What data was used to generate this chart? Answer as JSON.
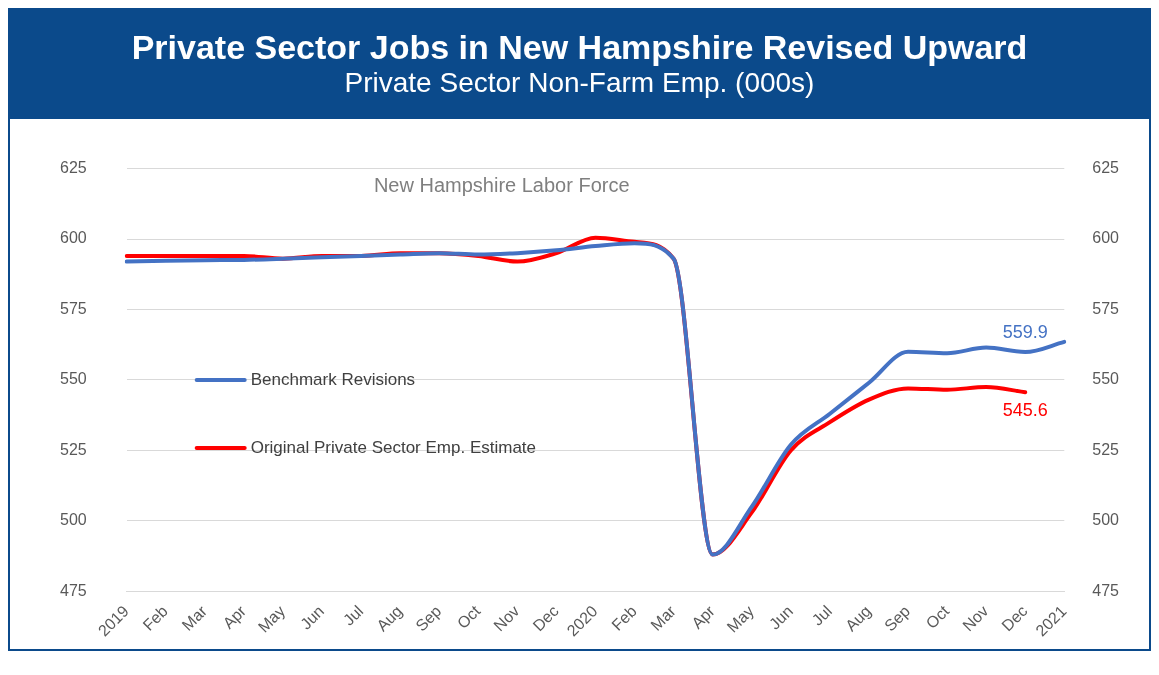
{
  "chart_data": {
    "type": "line",
    "title": "Private Sector Jobs in New Hampshire Revised Upward",
    "subtitle": "Private Sector Non-Farm Emp. (000s)",
    "annotations": [
      "New Hampshire Labor Force"
    ],
    "categories": [
      "2019",
      "Feb",
      "Mar",
      "Apr",
      "May",
      "Jun",
      "Jul",
      "Aug",
      "Sep",
      "Oct",
      "Nov",
      "Dec",
      "2020",
      "Feb",
      "Mar",
      "Apr",
      "May",
      "Jun",
      "Jul",
      "Aug",
      "Sep",
      "Oct",
      "Nov",
      "Dec",
      "2021"
    ],
    "series": [
      {
        "name": "Benchmark Revisions",
        "color": "#4472c4",
        "values": [
          592,
          592.3,
          592.5,
          592.6,
          593,
          593.5,
          594,
          594.5,
          595,
          594.5,
          595,
          596,
          597.5,
          598.5,
          593,
          488,
          505,
          527,
          538,
          549,
          560,
          559.5,
          561.5,
          559.9,
          563.5
        ],
        "value_labels": [
          null,
          null,
          null,
          null,
          null,
          null,
          null,
          null,
          null,
          null,
          null,
          null,
          null,
          null,
          null,
          null,
          null,
          null,
          null,
          null,
          null,
          null,
          null,
          "559.9",
          null
        ]
      },
      {
        "name": "Original Private Sector Emp. Estimate",
        "color": "#ff0000",
        "values": [
          594,
          594,
          594,
          594,
          593,
          594,
          594,
          595,
          595,
          594,
          592,
          595,
          600.5,
          599,
          593,
          488,
          503,
          525,
          535,
          543,
          547,
          546.5,
          547.5,
          545.6,
          null
        ],
        "value_labels": [
          null,
          null,
          null,
          null,
          null,
          null,
          null,
          null,
          null,
          null,
          null,
          null,
          null,
          null,
          null,
          null,
          null,
          null,
          null,
          null,
          null,
          null,
          null,
          "545.6",
          null
        ]
      }
    ],
    "ylim": [
      475,
      625
    ],
    "yticks": [
      475,
      500,
      525,
      550,
      575,
      600,
      625
    ],
    "y2lim": [
      475,
      625
    ],
    "y2ticks": [
      475,
      500,
      525,
      550,
      575,
      600,
      625
    ],
    "grid": "y",
    "legend": "left",
    "marker": "none",
    "line_style": "solid"
  }
}
